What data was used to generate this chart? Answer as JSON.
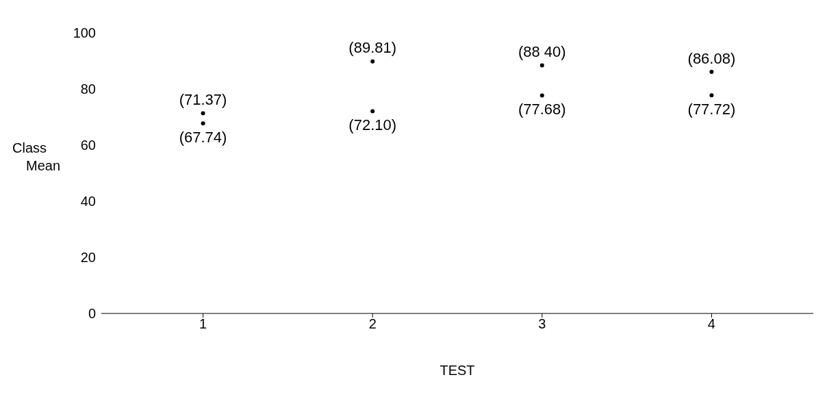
{
  "chart_data": {
    "type": "scatter",
    "xlabel": "TEST",
    "ylabel": "Class Mean",
    "categories": [
      "1",
      "2",
      "3",
      "4"
    ],
    "series": [
      {
        "color": "#000000",
        "values": [
          71.37,
          89.81,
          88.4,
          86.08
        ],
        "value_labels": [
          "(71.37)",
          "(89.81)",
          "(88 40)",
          "(86.08)"
        ]
      },
      {
        "color": "#000000",
        "values": [
          67.74,
          72.1,
          77.68,
          77.72
        ],
        "value_labels": [
          "(67.74)",
          "(72.10)",
          "(77.68)",
          "(77.72)"
        ]
      }
    ],
    "ylim": [
      0,
      100
    ],
    "yticks": [
      0,
      20,
      40,
      60,
      80,
      100
    ],
    "marker": "circle",
    "grid": false,
    "legend": false
  }
}
